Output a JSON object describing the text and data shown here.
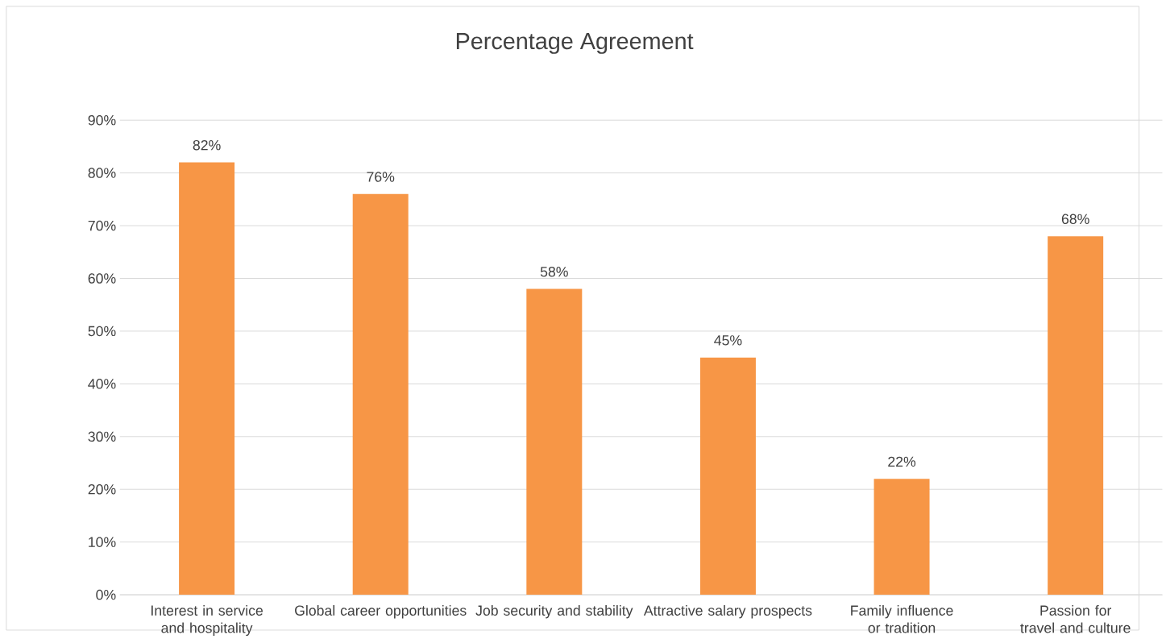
{
  "chart_data": {
    "type": "bar",
    "title": "Percentage Agreement",
    "categories": [
      "Interest in service and hospitality",
      "Global career opportunities",
      "Job security and stability",
      "Attractive salary prospects",
      "Family influence or tradition",
      "Passion for travel and culture"
    ],
    "values": [
      82,
      76,
      58,
      45,
      22,
      68
    ],
    "value_labels": [
      "82%",
      "76%",
      "58%",
      "45%",
      "22%",
      "68%"
    ],
    "color": "#f79646",
    "ylim": [
      0,
      90
    ],
    "yticks": [
      {
        "value": 0,
        "label": "0%"
      },
      {
        "value": 10,
        "label": "10%"
      },
      {
        "value": 20,
        "label": "20%"
      },
      {
        "value": 30,
        "label": "30%"
      },
      {
        "value": 40,
        "label": "40%"
      },
      {
        "value": 50,
        "label": "50%"
      },
      {
        "value": 60,
        "label": "60%"
      },
      {
        "value": 70,
        "label": "70%"
      },
      {
        "value": 80,
        "label": "80%"
      },
      {
        "value": 90,
        "label": "90%"
      }
    ],
    "grid": "y"
  }
}
